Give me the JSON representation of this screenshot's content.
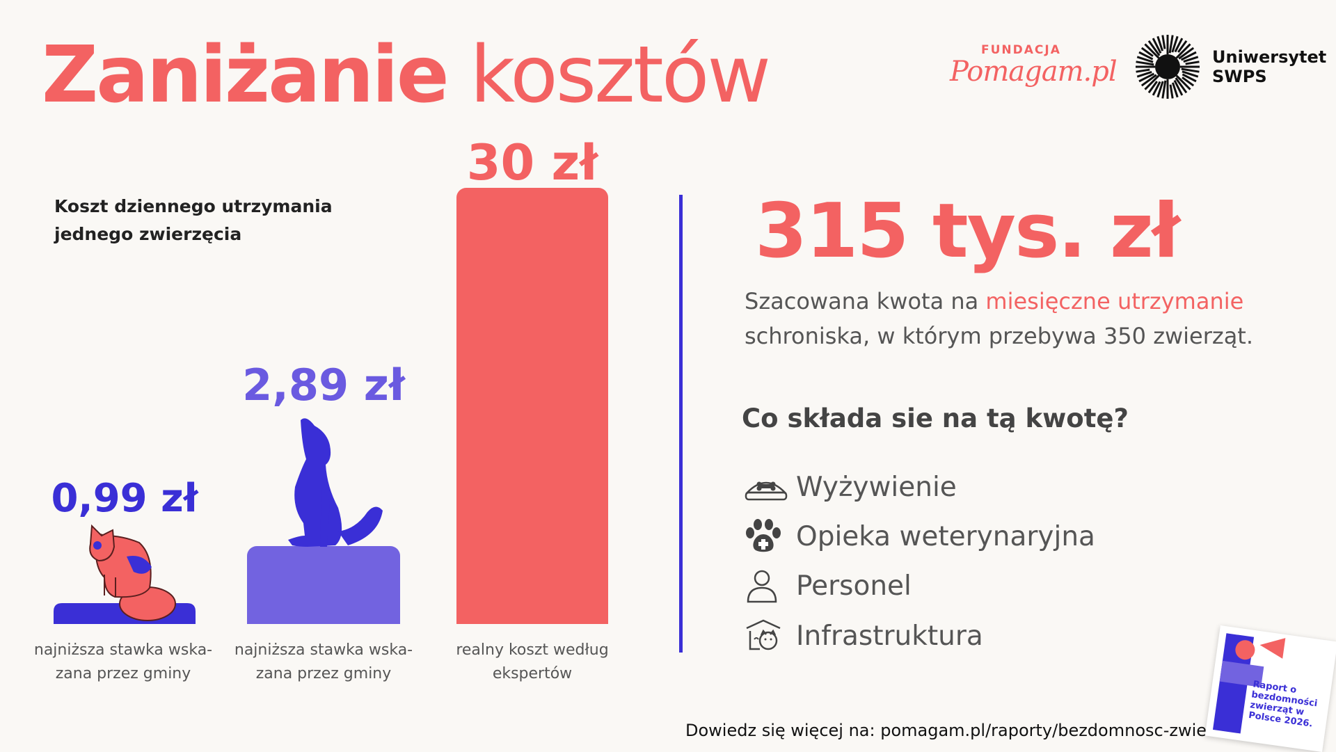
{
  "title": {
    "bold": "Zaniżanie",
    "light": "kosztów"
  },
  "logos": {
    "fundacja_small": "FUNDACJA",
    "fundacja_script": "Pomagam.pl",
    "swps_line1": "Uniwersytet",
    "swps_line2": "SWPS"
  },
  "chart_data": {
    "type": "bar",
    "title": "Koszt dziennego utrzymania jednego zwierzęcia",
    "categories": [
      "najniższa stawka wska-zana przez gminy",
      "najniższa stawka wska-zana przez gminy",
      "realny koszt według ekspertów"
    ],
    "values": [
      0.99,
      2.89,
      30
    ],
    "value_labels": [
      "0,99 zł",
      "2,89 zł",
      "30 zł"
    ],
    "unit": "zł",
    "colors": [
      "#3a2fd6",
      "#7263e0",
      "#f36262"
    ],
    "value_label_colors": [
      "#3a2fd6",
      "#6a5ae0",
      "#f36262"
    ],
    "icons": [
      "cat-illustration",
      "dog-illustration",
      ""
    ],
    "grid": false,
    "legend": "none"
  },
  "chart_labels": {
    "subtitle_line1": "Koszt dziennego utrzymania",
    "subtitle_line2": "jednego zwierzęcia",
    "bar1_line1": "najniższa stawka wska-",
    "bar1_line2": "zana przez gminy",
    "bar2_line1": "najniższa stawka wska-",
    "bar2_line2": "zana przez gminy",
    "bar3_line1": "realny koszt według",
    "bar3_line2": "ekspertów"
  },
  "summary": {
    "amount": "315 tys. zł",
    "desc_before": "Szacowana kwota na ",
    "desc_highlight": "miesięczne utrzymanie",
    "desc_line2": "schroniska, w którym przebywa 350 zwierząt.",
    "question": "Co składa sie na tą kwotę?",
    "items": [
      {
        "icon": "food-bowl-icon",
        "label": "Wyżywienie"
      },
      {
        "icon": "paw-cross-icon",
        "label": "Opieka weterynaryjna"
      },
      {
        "icon": "person-icon",
        "label": "Personel"
      },
      {
        "icon": "shelter-icon",
        "label": "Infrastruktura"
      }
    ]
  },
  "footer": {
    "link": "Dowiedz się więcej na: pomagam.pl/raporty/bezdomnosc-zwierzat",
    "report_title": "Raport o bezdomności zwierząt w Polsce 2026."
  },
  "colors": {
    "accent": "#f36262",
    "primary": "#3a2fd6",
    "background": "#faf8f5"
  }
}
